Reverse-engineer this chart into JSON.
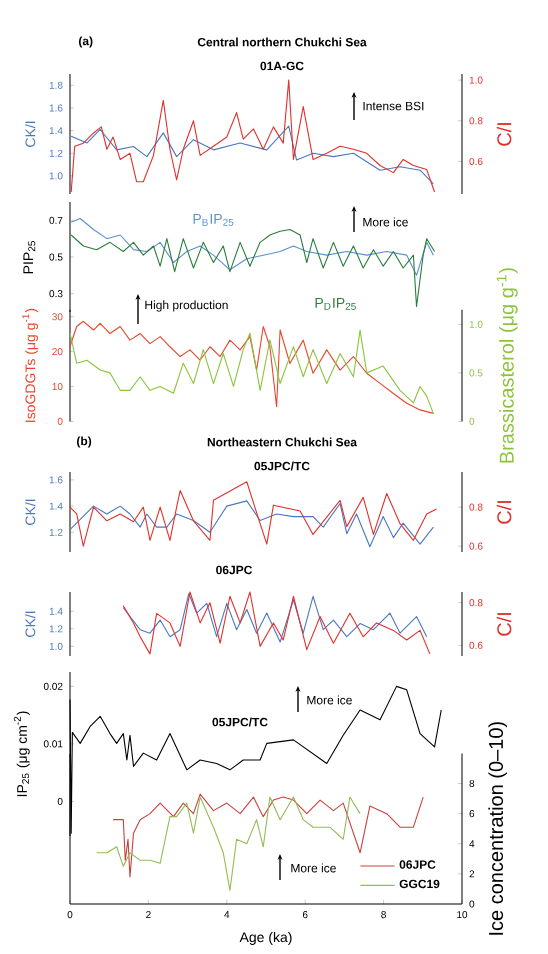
{
  "chart_data": [
    {
      "type": "line",
      "title": "Central northern Chukchi Sea",
      "subtitle": "01A-GC",
      "ylabel": "CK/I",
      "y2label": "C/I",
      "annotations": [
        "(a)",
        "Intense BSI"
      ],
      "xlim": [
        0,
        10
      ],
      "ylim": [
        0.84,
        1.9
      ],
      "yticks": [
        {
          "value": 1.0,
          "label": "1.0"
        },
        1.2,
        1.4,
        1.6,
        1.8
      ],
      "y2lim": [
        0.44,
        1.03
      ],
      "y2ticks": [
        0.6,
        0.8,
        {
          "value": 1.0,
          "label": "1.0"
        }
      ],
      "tick_labels": "y",
      "series": [
        {
          "color": "#4a78c0",
          "x": [
            0.03,
            0.43,
            0.77,
            1.19,
            1.62,
            1.96,
            2.38,
            2.72,
            3.15,
            3.66,
            4.34,
            5.02,
            5.58,
            5.78,
            6.2,
            6.72,
            7.23,
            7.91,
            8.42,
            8.93,
            9.27
          ],
          "values": [
            1.35,
            1.29,
            1.41,
            1.23,
            1.26,
            1.17,
            1.38,
            1.17,
            1.32,
            1.23,
            1.29,
            1.23,
            1.44,
            1.14,
            1.2,
            1.17,
            1.2,
            1.05,
            1.08,
            1.05,
            0.93
          ]
        },
        {
          "color": "#e0302c",
          "axis": "y2",
          "x": [
            0.03,
            0.12,
            0.34,
            0.6,
            0.8,
            0.94,
            1.1,
            1.28,
            1.53,
            1.7,
            1.87,
            2.13,
            2.38,
            2.55,
            2.72,
            2.89,
            3.15,
            3.32,
            3.66,
            4.0,
            4.25,
            4.42,
            4.68,
            4.93,
            5.19,
            5.44,
            5.58,
            5.7,
            5.95,
            6.2,
            6.55,
            6.89,
            7.23,
            7.57,
            7.91,
            8.25,
            8.5,
            8.76,
            9.1,
            9.3
          ],
          "values": [
            0.45,
            0.675,
            0.69,
            0.74,
            0.77,
            0.66,
            0.72,
            0.61,
            0.64,
            0.5,
            0.5,
            0.63,
            0.9,
            0.66,
            0.51,
            0.66,
            0.8,
            0.63,
            0.675,
            0.72,
            0.84,
            0.71,
            0.76,
            0.66,
            0.77,
            0.69,
            1.0,
            0.61,
            0.87,
            0.61,
            0.64,
            0.675,
            0.66,
            0.64,
            0.58,
            0.545,
            0.61,
            0.58,
            0.56,
            0.45
          ]
        }
      ]
    },
    {
      "type": "line",
      "ylabel": "PIP$_{25}$",
      "annotations": [
        "More ice"
      ],
      "xlim": [
        0,
        10
      ],
      "ylim": [
        0.2,
        0.8
      ],
      "yticks": [
        0.3,
        0.5,
        0.7
      ],
      "tick_labels": "y",
      "series": [
        {
          "name": "P$_{B}$IP$_{25}$",
          "color": "#5b8fd0",
          "x": [
            0.03,
            0.26,
            0.6,
            0.94,
            1.28,
            1.62,
            1.96,
            2.3,
            2.64,
            2.98,
            3.32,
            3.66,
            4.08,
            4.51,
            4.93,
            5.36,
            5.7,
            6.04,
            6.55,
            7.06,
            7.57,
            8.08,
            8.59,
            8.84,
            9.1,
            9.27
          ],
          "values": [
            0.69,
            0.71,
            0.65,
            0.6,
            0.62,
            0.54,
            0.53,
            0.58,
            0.47,
            0.53,
            0.56,
            0.51,
            0.43,
            0.49,
            0.51,
            0.53,
            0.56,
            0.53,
            0.51,
            0.53,
            0.51,
            0.53,
            0.51,
            0.4,
            0.58,
            0.51
          ]
        },
        {
          "name": "P$_{D}$IP$_{25}$",
          "color": "#2a7d3a",
          "x": [
            0.03,
            0.34,
            0.68,
            1.02,
            1.36,
            1.62,
            1.87,
            2.13,
            2.3,
            2.47,
            2.67,
            2.89,
            3.15,
            3.4,
            3.66,
            3.91,
            4.08,
            4.34,
            4.59,
            4.85,
            5.1,
            5.36,
            5.61,
            5.87,
            6.04,
            6.2,
            6.46,
            6.72,
            6.97,
            7.23,
            7.48,
            7.74,
            7.99,
            8.25,
            8.5,
            8.76,
            8.84,
            9.01,
            9.1,
            9.3
          ],
          "values": [
            0.62,
            0.56,
            0.54,
            0.58,
            0.53,
            0.58,
            0.51,
            0.56,
            0.45,
            0.6,
            0.42,
            0.6,
            0.44,
            0.58,
            0.47,
            0.56,
            0.42,
            0.58,
            0.45,
            0.58,
            0.62,
            0.64,
            0.65,
            0.62,
            0.47,
            0.6,
            0.44,
            0.58,
            0.45,
            0.56,
            0.44,
            0.54,
            0.45,
            0.53,
            0.44,
            0.51,
            0.23,
            0.51,
            0.6,
            0.53
          ]
        }
      ]
    },
    {
      "type": "line",
      "ylabel": "IsoGDGTs (μg g$^{-1}$)",
      "y2label": "Brassicasterol (μg g$^{-1}$)",
      "annotations": [
        "High production"
      ],
      "xlim": [
        0,
        10
      ],
      "ylim": [
        0,
        32
      ],
      "yticks": [
        0,
        10,
        20,
        30
      ],
      "y2lim": [
        0,
        1.15
      ],
      "y2ticks": [
        0,
        0.5,
        {
          "value": 1.0,
          "label": "1.0"
        }
      ],
      "tick_labels": "y",
      "series": [
        {
          "color": "#e8452b",
          "x": [
            0.0,
            0.17,
            0.34,
            0.6,
            0.77,
            1.02,
            1.28,
            1.53,
            1.79,
            2.04,
            2.3,
            2.55,
            2.81,
            3.06,
            3.32,
            3.57,
            3.83,
            4.08,
            4.34,
            4.59,
            4.76,
            4.93,
            5.1,
            5.27,
            5.36,
            5.61,
            5.95,
            6.2,
            6.55,
            6.89,
            7.23,
            7.57,
            7.91,
            8.25,
            8.59,
            8.93,
            9.27
          ],
          "values": [
            21.4,
            27.2,
            28.7,
            26.2,
            28.1,
            25.2,
            27.2,
            23.3,
            25.2,
            22.3,
            24.3,
            21.4,
            18.6,
            20.5,
            17.6,
            21.4,
            18.6,
            23.3,
            20.5,
            24.3,
            14.7,
            27.2,
            21.4,
            4.2,
            26.2,
            16.6,
            23.3,
            13.8,
            20.5,
            14.7,
            18.6,
            13.8,
            10.9,
            8.0,
            5.2,
            3.3,
            2.3
          ]
        },
        {
          "color": "#8cc43c",
          "axis": "y2",
          "x": [
            0.0,
            0.17,
            0.43,
            0.77,
            1.02,
            1.28,
            1.53,
            1.79,
            2.04,
            2.3,
            2.64,
            2.89,
            3.15,
            3.4,
            3.66,
            3.91,
            4.17,
            4.42,
            4.59,
            4.85,
            5.1,
            5.36,
            5.7,
            5.95,
            6.2,
            6.55,
            6.89,
            7.23,
            7.4,
            7.57,
            7.99,
            8.42,
            8.76,
            8.93,
            9.1,
            9.27
          ],
          "values": [
            0.91,
            0.6,
            0.63,
            0.53,
            0.5,
            0.32,
            0.32,
            0.46,
            0.32,
            0.36,
            0.29,
            0.6,
            0.39,
            0.74,
            0.39,
            0.7,
            0.36,
            0.74,
            0.91,
            0.32,
            0.84,
            0.39,
            0.77,
            0.46,
            0.74,
            0.39,
            0.7,
            0.46,
            0.94,
            0.5,
            0.57,
            0.32,
            0.19,
            0.36,
            0.26,
            0.08
          ]
        }
      ]
    },
    {
      "type": "line",
      "title": "Northeastern Chukchi Sea",
      "subtitle": "05JPC/TC",
      "ylabel": "CK/I",
      "y2label": "C/I",
      "annotations": [
        "(b)"
      ],
      "xlim": [
        0,
        10
      ],
      "ylim": [
        1.05,
        1.66
      ],
      "yticks": [
        1.2,
        1.4,
        1.6
      ],
      "y2lim": [
        0.57,
        0.98
      ],
      "y2ticks": [
        0.6,
        0.8
      ],
      "tick_labels": "y",
      "series": [
        {
          "color": "#4a78c0",
          "x": [
            0,
            0.6,
            0.94,
            1.28,
            1.53,
            1.79,
            1.96,
            2.21,
            2.47,
            2.72,
            3.15,
            3.57,
            4.0,
            4.51,
            4.85,
            5.27,
            5.7,
            6.2,
            6.46,
            6.89,
            7.06,
            7.31,
            7.65,
            7.99,
            8.25,
            8.5,
            8.93,
            9.27
          ],
          "values": [
            1.22,
            1.4,
            1.34,
            1.4,
            1.34,
            1.24,
            1.34,
            1.24,
            1.24,
            1.34,
            1.29,
            1.2,
            1.4,
            1.44,
            1.29,
            1.34,
            1.32,
            1.32,
            1.24,
            1.42,
            1.19,
            1.34,
            1.09,
            1.32,
            1.16,
            1.27,
            1.11,
            1.24
          ]
        },
        {
          "color": "#e0302c",
          "axis": "y2",
          "x": [
            0,
            0.17,
            0.34,
            0.6,
            0.94,
            1.28,
            1.62,
            1.87,
            2.04,
            2.3,
            2.55,
            2.72,
            2.81,
            3.15,
            3.57,
            3.66,
            4.51,
            4.85,
            5.02,
            5.19,
            5.87,
            6.2,
            6.89,
            7.06,
            7.48,
            7.74,
            8.08,
            8.42,
            8.76,
            9.1,
            9.35
          ],
          "values": [
            0.8,
            0.765,
            0.6,
            0.8,
            0.73,
            0.765,
            0.725,
            0.8,
            0.63,
            0.8,
            0.63,
            0.8,
            0.885,
            0.73,
            0.63,
            0.835,
            0.93,
            0.715,
            0.61,
            0.81,
            0.78,
            0.66,
            0.835,
            0.7,
            0.85,
            0.66,
            0.87,
            0.715,
            0.63,
            0.765,
            0.79
          ]
        }
      ]
    },
    {
      "type": "line",
      "title": "06JPC",
      "ylabel": "CK/I",
      "y2label": "C/I",
      "xlim": [
        0,
        10
      ],
      "ylim": [
        0.89,
        1.62
      ],
      "yticks": [
        {
          "value": 1.0,
          "label": "1.0"
        },
        1.2,
        1.4
      ],
      "y2lim": [
        0.55,
        0.85
      ],
      "y2ticks": [
        0.6,
        0.8
      ],
      "tick_labels": "y",
      "series": [
        {
          "color": "#4a78c0",
          "x": [
            1.36,
            1.53,
            1.79,
            2.04,
            2.3,
            2.55,
            2.81,
            3.03,
            3.23,
            3.49,
            3.74,
            4.0,
            4.25,
            4.51,
            4.76,
            5.02,
            5.36,
            5.7,
            5.95,
            6.2,
            6.46,
            6.72,
            7.06,
            7.4,
            7.74,
            8.16,
            8.42,
            8.84,
            9.1
          ],
          "values": [
            1.44,
            1.34,
            1.19,
            1.15,
            1.3,
            1.11,
            1.19,
            1.6,
            1.38,
            1.49,
            1.11,
            1.49,
            1.19,
            1.42,
            1.15,
            1.38,
            1.05,
            1.53,
            1.15,
            1.57,
            1.19,
            1.3,
            1.11,
            1.26,
            1.19,
            1.38,
            1.15,
            1.34,
            1.11
          ]
        },
        {
          "color": "#e0302c",
          "axis": "y2",
          "x": [
            1.36,
            1.62,
            1.79,
            2.04,
            2.21,
            2.55,
            2.81,
            3.06,
            3.32,
            3.57,
            3.83,
            4.08,
            4.34,
            4.59,
            4.85,
            5.19,
            5.44,
            5.7,
            6.04,
            6.38,
            6.72,
            7.14,
            7.48,
            7.82,
            8.25,
            8.59,
            8.93,
            9.18
          ],
          "values": [
            0.785,
            0.705,
            0.64,
            0.56,
            0.75,
            0.705,
            0.595,
            0.85,
            0.705,
            0.8,
            0.61,
            0.83,
            0.705,
            0.85,
            0.595,
            0.705,
            0.625,
            0.83,
            0.58,
            0.735,
            0.61,
            0.75,
            0.64,
            0.705,
            0.67,
            0.625,
            0.67,
            0.56
          ]
        }
      ]
    },
    {
      "type": "line",
      "title": "05JPC/TC",
      "ylabel": "IP$_{25}$ (μg cm$^{-2}$)",
      "annotations": [
        "More ice"
      ],
      "xlim": [
        0,
        10
      ],
      "ylim": [
        -0.006,
        0.0225
      ],
      "yticks": [
        0,
        0.01,
        0.02
      ],
      "tick_labels": "y",
      "series": [
        {
          "color": "#000000",
          "x": [
            0,
            0.03,
            0.06,
            0.26,
            0.51,
            0.77,
            1.02,
            1.19,
            1.36,
            1.45,
            1.53,
            1.62,
            1.87,
            2.21,
            2.55,
            2.98,
            3.32,
            3.74,
            4.08,
            4.42,
            4.85,
            5.02,
            5.7,
            6.55,
            6.97,
            7.4,
            7.91,
            8.33,
            8.59,
            8.93,
            9.3,
            9.47
          ],
          "values": [
            0.0177,
            -0.0055,
            0.012,
            0.0101,
            0.013,
            0.0148,
            0.0118,
            0.0101,
            0.0118,
            0.0072,
            0.0115,
            0.0061,
            0.0084,
            0.0072,
            0.0118,
            0.0055,
            0.0072,
            0.0066,
            0.0055,
            0.0072,
            0.0072,
            0.0101,
            0.0107,
            0.0066,
            0.0115,
            0.0159,
            0.0142,
            0.02,
            0.0194,
            0.0118,
            0.0095,
            0.0159
          ]
        }
      ]
    },
    {
      "type": "line",
      "xlabel": "Age (ka)",
      "y2label": "Ice concentration (0–10)",
      "annotations": [
        "More ice"
      ],
      "xlim": [
        0,
        10
      ],
      "xticks": [
        0,
        2,
        4,
        6,
        8,
        10
      ],
      "y2lim": [
        0,
        10
      ],
      "y2ticks": [
        0,
        2,
        4,
        6,
        8
      ],
      "legend": "bottom right",
      "series": [
        {
          "name": "06JPC",
          "color": "#c8423f",
          "axis": "y2",
          "x": [
            1.1,
            1.36,
            1.41,
            1.48,
            1.53,
            1.62,
            1.79,
            2.04,
            2.3,
            2.64,
            2.89,
            3.15,
            3.32,
            3.66,
            4.0,
            4.34,
            4.68,
            4.93,
            5.19,
            5.44,
            5.7,
            6.04,
            6.38,
            6.72,
            6.97,
            7.4,
            7.65,
            8.08,
            8.42,
            8.76,
            9.01
          ],
          "values": [
            5.6,
            5.6,
            2.9,
            4.3,
            1.8,
            4.7,
            5.6,
            6.0,
            6.7,
            5.8,
            6.7,
            6.0,
            7.3,
            6.2,
            6.7,
            6.0,
            7.1,
            5.8,
            6.9,
            7.1,
            6.9,
            6.0,
            6.9,
            6.2,
            6.7,
            3.4,
            6.5,
            6.0,
            5.1,
            5.1,
            7.1
          ]
        },
        {
          "name": "GGC19",
          "color": "#92bd55",
          "axis": "y2",
          "x": [
            0.68,
            0.94,
            1.19,
            1.36,
            1.53,
            1.79,
            2.04,
            2.3,
            2.55,
            2.72,
            2.98,
            3.15,
            3.32,
            3.66,
            3.91,
            4.08,
            4.25,
            4.51,
            4.76,
            4.93,
            5.1,
            5.36,
            5.7,
            5.95,
            6.2,
            6.63,
            6.97,
            7.14,
            7.4
          ],
          "values": [
            3.4,
            3.4,
            3.8,
            2.5,
            3.4,
            2.9,
            2.9,
            2.7,
            5.8,
            5.8,
            6.7,
            4.7,
            7.1,
            5.1,
            3.4,
            0.9,
            4.3,
            4.0,
            5.6,
            3.8,
            7.1,
            5.6,
            7.1,
            5.6,
            5.1,
            5.1,
            4.3,
            7.1,
            6.0
          ]
        }
      ]
    }
  ]
}
